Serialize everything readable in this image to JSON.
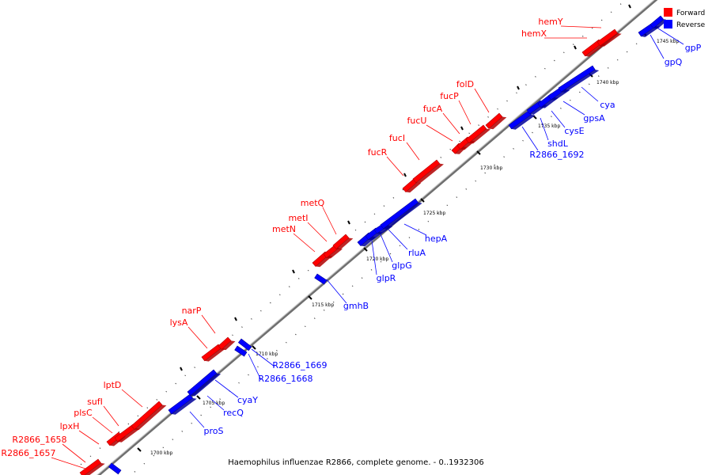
{
  "caption": "Haemophilus influenzae R2866, complete genome. - 0..1932306",
  "colors": {
    "forward": "#ff0000",
    "reverse": "#0000ff",
    "backbone": "#808080"
  },
  "legend": {
    "forward": "Forward",
    "reverse": "Reverse"
  },
  "scale_labels": [
    "1700 kbp",
    "1705 kbp",
    "1710 kbp",
    "1715 kbp",
    "1720 kbp",
    "1725 kbp",
    "1730 kbp",
    "1735 kbp",
    "1740 kbp",
    "1745 kbp"
  ],
  "genes_forward": [
    "R2866_1657",
    "R2866_1658",
    "lpxH",
    "plsC",
    "sufI",
    "lptD",
    "lysA",
    "narP",
    "metN",
    "metI",
    "metQ",
    "fucR",
    "fucI",
    "fucU",
    "fucA",
    "fucP",
    "folD",
    "hemX",
    "hemY"
  ],
  "genes_reverse": [
    "proS",
    "recQ",
    "cyaY",
    "R2866_1668",
    "R2866_1669",
    "gmhB",
    "glpR",
    "glpG",
    "rluA",
    "hepA",
    "R2866_1692",
    "shdL",
    "cysE",
    "gpsA",
    "cya",
    "gpQ",
    "gpP"
  ]
}
